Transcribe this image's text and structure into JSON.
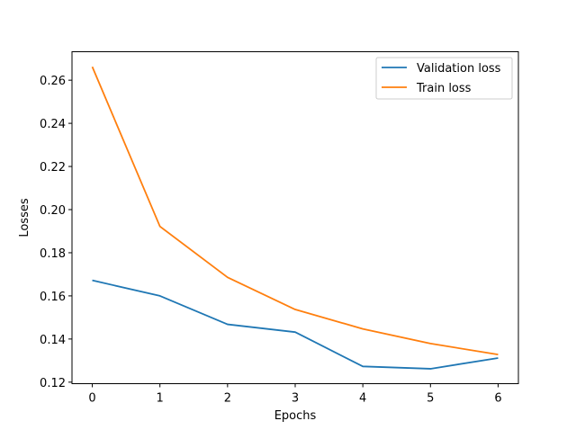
{
  "chart_data": {
    "type": "line",
    "title": "",
    "xlabel": "Epochs",
    "ylabel": "Losses",
    "x": [
      0,
      1,
      2,
      3,
      4,
      5,
      6
    ],
    "xlim": [
      -0.3,
      6.3
    ],
    "ylim": [
      0.1193,
      0.2732
    ],
    "xticks": [
      "0",
      "1",
      "2",
      "3",
      "4",
      "5",
      "6"
    ],
    "yticks": [
      "0.12",
      "0.14",
      "0.16",
      "0.18",
      "0.20",
      "0.22",
      "0.24",
      "0.26"
    ],
    "grid": false,
    "legend_position": "top-right",
    "series": [
      {
        "name": "Validation loss",
        "color": "#1f77b4",
        "values": [
          0.1672,
          0.16,
          0.1468,
          0.1432,
          0.1273,
          0.1262,
          0.1312
        ]
      },
      {
        "name": "Train loss",
        "color": "#ff7f0e",
        "values": [
          0.2662,
          0.1922,
          0.1686,
          0.1537,
          0.1447,
          0.1379,
          0.1328
        ]
      }
    ]
  }
}
